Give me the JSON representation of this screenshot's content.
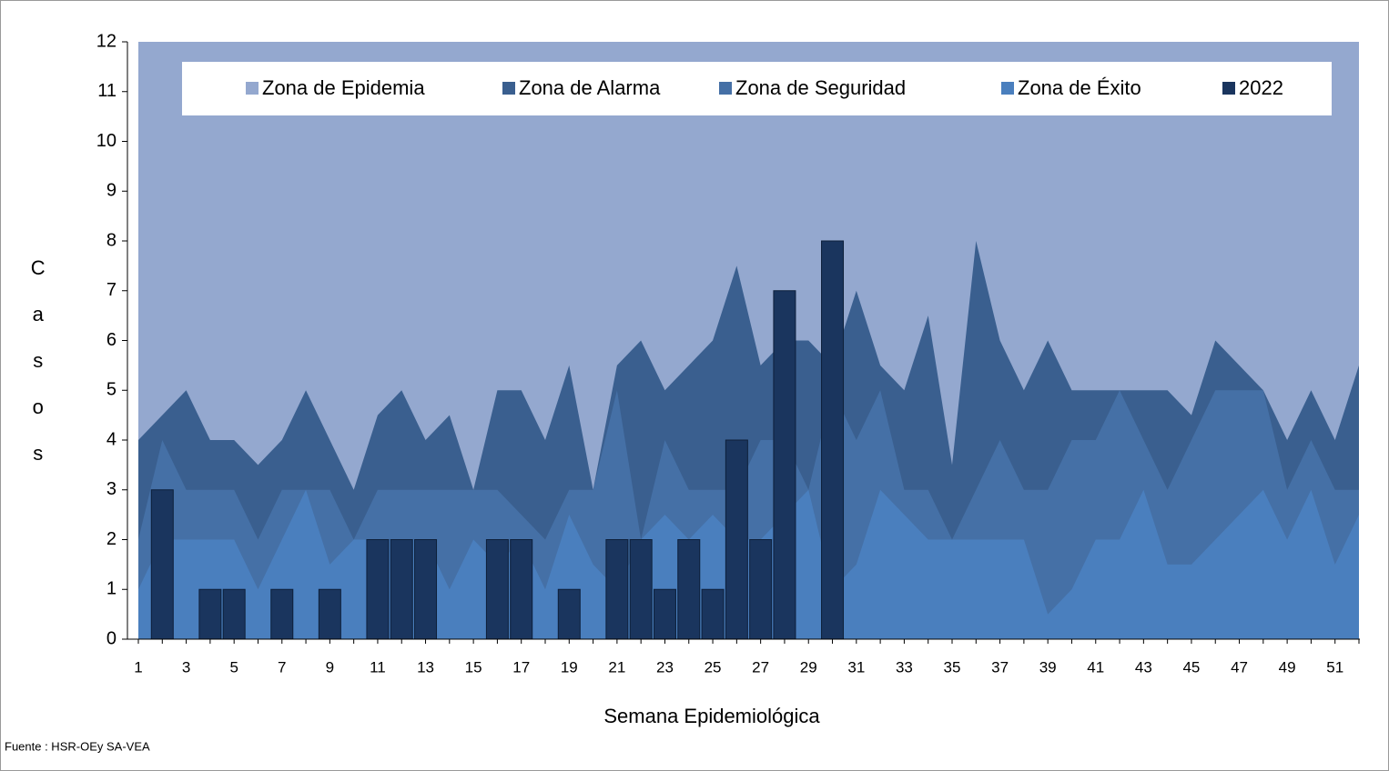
{
  "chart_data": {
    "type": "endemic",
    "x_label": "Semana  Epidemiológica",
    "y_label": "Casos",
    "source": "Fuente : HSR-OEy SA-VEA",
    "categories": [
      "1",
      null,
      "3",
      null,
      "5",
      null,
      "7",
      null,
      "9",
      null,
      "11",
      null,
      "13",
      null,
      "15",
      null,
      "17",
      null,
      "19",
      null,
      "21",
      null,
      "23",
      null,
      "25",
      null,
      "27",
      null,
      "29",
      null,
      "31",
      null,
      "33",
      null,
      "35",
      null,
      "37",
      null,
      "39",
      null,
      "41",
      null,
      "43",
      null,
      "45",
      null,
      "47",
      null,
      "49",
      null,
      "51",
      null
    ],
    "ylim": [
      0,
      12
    ],
    "yticks": [
      0,
      1,
      2,
      3,
      4,
      5,
      6,
      7,
      8,
      9,
      10,
      11,
      12
    ],
    "series": [
      {
        "name": "Zona de Epidemia",
        "kind": "area",
        "color": "#94a8cf",
        "values": [
          12,
          12,
          12,
          12,
          12,
          12,
          12,
          12,
          12,
          12,
          12,
          12,
          12,
          12,
          12,
          12,
          12,
          12,
          12,
          12,
          12,
          12,
          12,
          12,
          12,
          12,
          12,
          12,
          12,
          12,
          12,
          12,
          12,
          12,
          12,
          12,
          12,
          12,
          12,
          12,
          12,
          12,
          12,
          12,
          12,
          12,
          12,
          12,
          12,
          12,
          12,
          12
        ]
      },
      {
        "name": "Zona de Alarma",
        "kind": "area",
        "color": "#3a5f8f",
        "values": [
          4,
          4.5,
          5,
          4,
          4,
          3.5,
          4,
          5,
          4,
          3,
          4.5,
          5,
          4,
          4.5,
          3,
          5,
          5,
          4,
          5.5,
          3,
          5.5,
          6,
          5,
          5.5,
          6,
          7.5,
          5.5,
          6,
          6,
          5.5,
          7,
          5.5,
          5,
          6.5,
          3.5,
          8,
          6,
          5,
          6,
          5,
          5,
          5,
          5,
          5,
          4.5,
          6,
          5.5,
          5,
          4,
          5,
          4,
          5.5
        ]
      },
      {
        "name": "Zona de Seguridad",
        "kind": "area",
        "color": "#4570a6",
        "values": [
          2,
          4,
          3,
          3,
          3,
          2,
          3,
          3,
          3,
          2,
          3,
          3,
          3,
          3,
          3,
          3,
          2.5,
          2,
          3,
          3,
          5,
          2,
          4,
          3,
          3,
          3,
          4,
          4,
          3,
          5,
          4,
          5,
          3,
          3,
          2,
          3,
          4,
          3,
          3,
          4,
          4,
          5,
          4,
          3,
          4,
          5,
          5,
          5,
          3,
          4,
          3,
          3
        ]
      },
      {
        "name": "Zona de Éxito",
        "kind": "area",
        "color": "#4a7fbe",
        "values": [
          1,
          2,
          2,
          2,
          2,
          1,
          2,
          3,
          1.5,
          2,
          2,
          2,
          2,
          1,
          2,
          1.5,
          2,
          1,
          2.5,
          1.5,
          1,
          2,
          2.5,
          2,
          2.5,
          2,
          2,
          2.5,
          3,
          1,
          1.5,
          3,
          2.5,
          2,
          2,
          2,
          2,
          2,
          0.5,
          1,
          2,
          2,
          3,
          1.5,
          1.5,
          2,
          2.5,
          3,
          2,
          3,
          1.5,
          2.5
        ]
      },
      {
        "name": "2022",
        "kind": "bar",
        "color": "#1a355e",
        "values": [
          0,
          3,
          0,
          1,
          1,
          0,
          1,
          0,
          1,
          0,
          2,
          2,
          2,
          0,
          0,
          2,
          2,
          0,
          1,
          0,
          2,
          2,
          1,
          2,
          1,
          4,
          2,
          7,
          0,
          8,
          0,
          0,
          0,
          0,
          0,
          0,
          0,
          0,
          0,
          0,
          0,
          0,
          0,
          0,
          0,
          0,
          0,
          0,
          0,
          0,
          0,
          0
        ]
      }
    ]
  }
}
